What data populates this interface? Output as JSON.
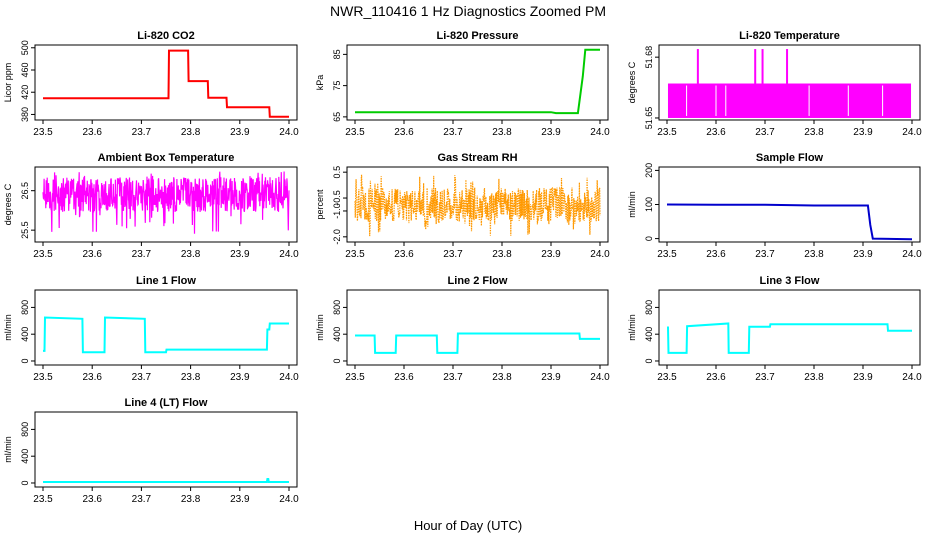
{
  "figure": {
    "title": "NWR_110416  1 Hz Diagnostics Zoomed PM",
    "xlabel": "Hour of Day (UTC)"
  },
  "chart_data": [
    {
      "type": "line",
      "title": "Li-820 CO2",
      "ylabel": "Licor ppm",
      "color": "#ff0000",
      "xlim": [
        23.5,
        24.0
      ],
      "ylim": [
        370,
        505
      ],
      "xticks": [
        23.5,
        23.6,
        23.7,
        23.8,
        23.9,
        24.0
      ],
      "xtick_labels": [
        "23.5",
        "23.6",
        "23.7",
        "23.8",
        "23.9",
        "24.0"
      ],
      "yticks": [
        380,
        420,
        460,
        500
      ],
      "ytick_labels": [
        "380",
        "420",
        "460",
        "500"
      ],
      "x": [
        23.5,
        23.755,
        23.756,
        23.795,
        23.796,
        23.835,
        23.836,
        23.873,
        23.874,
        23.935,
        23.936,
        23.96,
        23.961,
        24.0
      ],
      "y": [
        409,
        409,
        495,
        495,
        440,
        440,
        410,
        410,
        393,
        393,
        393,
        393,
        376,
        376
      ]
    },
    {
      "type": "line",
      "title": "Li-820 Pressure",
      "ylabel": "kPa",
      "color": "#00cc00",
      "xlim": [
        23.5,
        24.0
      ],
      "ylim": [
        64,
        88
      ],
      "xticks": [
        23.5,
        23.6,
        23.7,
        23.8,
        23.9,
        24.0
      ],
      "xtick_labels": [
        "23.5",
        "23.6",
        "23.7",
        "23.8",
        "23.9",
        "24.0"
      ],
      "yticks": [
        65,
        75,
        85
      ],
      "ytick_labels": [
        "65",
        "75",
        "85"
      ],
      "x": [
        23.5,
        23.9,
        23.91,
        23.955,
        23.965,
        23.97,
        24.0
      ],
      "y": [
        66.5,
        66.5,
        66.2,
        66.2,
        78,
        86.5,
        86.5
      ]
    },
    {
      "type": "line",
      "title": "Li-820 Temperature",
      "ylabel": "degrees C",
      "color": "#ff00ff",
      "xlim": [
        23.5,
        24.0
      ],
      "ylim": [
        51.649,
        51.686
      ],
      "xticks": [
        23.5,
        23.6,
        23.7,
        23.8,
        23.9,
        24.0
      ],
      "xtick_labels": [
        "23.5",
        "23.6",
        "23.7",
        "23.8",
        "23.9",
        "24.0"
      ],
      "yticks": [
        51.65,
        51.68
      ],
      "ytick_labels": [
        "51.65",
        "51.68"
      ],
      "band": [
        51.65,
        51.667
      ],
      "spikes_x": [
        23.563,
        23.68,
        23.695,
        23.745
      ],
      "spikes_top": 51.684
    },
    {
      "type": "line",
      "title": "Ambient Box Temperature",
      "ylabel": "degrees C",
      "color": "#ff00ff",
      "xlim": [
        23.5,
        24.0
      ],
      "ylim": [
        25.2,
        27.1
      ],
      "xticks": [
        23.5,
        23.6,
        23.7,
        23.8,
        23.9,
        24.0
      ],
      "xtick_labels": [
        "23.5",
        "23.6",
        "23.7",
        "23.8",
        "23.9",
        "24.0"
      ],
      "yticks": [
        25.5,
        26.5
      ],
      "ytick_labels": [
        "25.5",
        "26.5"
      ],
      "noise_mean": 26.4,
      "noise_range": [
        25.4,
        27.0
      ]
    },
    {
      "type": "line",
      "title": "Gas Stream RH",
      "ylabel": "percent",
      "color": "#ff9900",
      "xlim": [
        23.5,
        24.0
      ],
      "ylim": [
        -2.2,
        0.7
      ],
      "xticks": [
        23.5,
        23.6,
        23.7,
        23.8,
        23.9,
        24.0
      ],
      "xtick_labels": [
        "23.5",
        "23.6",
        "23.7",
        "23.8",
        "23.9",
        "24.0"
      ],
      "yticks": [
        -2.0,
        -1.0,
        -0.5,
        0.5
      ],
      "ytick_labels": [
        "-2.0",
        "-1.0",
        "-0.5",
        "0.5"
      ],
      "noise_mean": -0.75,
      "noise_range": [
        -2.0,
        0.4
      ]
    },
    {
      "type": "line",
      "title": "Sample Flow",
      "ylabel": "ml/min",
      "color": "#0000cc",
      "xlim": [
        23.5,
        24.0
      ],
      "ylim": [
        -10,
        210
      ],
      "xticks": [
        23.5,
        23.6,
        23.7,
        23.8,
        23.9,
        24.0
      ],
      "xtick_labels": [
        "23.5",
        "23.6",
        "23.7",
        "23.8",
        "23.9",
        "24.0"
      ],
      "yticks": [
        0,
        100,
        200
      ],
      "ytick_labels": [
        "0",
        "100",
        "200"
      ],
      "x": [
        23.5,
        23.6,
        23.7,
        23.8,
        23.91,
        23.915,
        23.92,
        24.0
      ],
      "y": [
        100,
        99,
        99,
        97,
        97,
        40,
        0,
        -2
      ]
    },
    {
      "type": "line",
      "title": "Line 1 Flow",
      "ylabel": "ml/min",
      "color": "#00ffff",
      "xlim": [
        23.5,
        24.0
      ],
      "ylim": [
        -60,
        1060
      ],
      "xticks": [
        23.5,
        23.6,
        23.7,
        23.8,
        23.9,
        24.0
      ],
      "xtick_labels": [
        "23.5",
        "23.6",
        "23.7",
        "23.8",
        "23.9",
        "24.0"
      ],
      "yticks": [
        0,
        400,
        800
      ],
      "ytick_labels": [
        "0",
        "400",
        "800"
      ],
      "x": [
        23.5,
        23.503,
        23.504,
        23.58,
        23.581,
        23.625,
        23.626,
        23.707,
        23.708,
        23.75,
        23.751,
        23.955,
        23.956,
        23.96,
        23.961,
        24.0
      ],
      "y": [
        150,
        150,
        650,
        630,
        130,
        130,
        650,
        630,
        130,
        130,
        170,
        170,
        470,
        470,
        560,
        560
      ]
    },
    {
      "type": "line",
      "title": "Line 2 Flow",
      "ylabel": "ml/min",
      "color": "#00ffff",
      "xlim": [
        23.5,
        24.0
      ],
      "ylim": [
        -60,
        1060
      ],
      "xticks": [
        23.5,
        23.6,
        23.7,
        23.8,
        23.9,
        24.0
      ],
      "xtick_labels": [
        "23.5",
        "23.6",
        "23.7",
        "23.8",
        "23.9",
        "24.0"
      ],
      "yticks": [
        0,
        400,
        800
      ],
      "ytick_labels": [
        "0",
        "400",
        "800"
      ],
      "x": [
        23.5,
        23.54,
        23.541,
        23.583,
        23.584,
        23.667,
        23.668,
        23.709,
        23.71,
        23.958,
        23.959,
        24.0
      ],
      "y": [
        380,
        380,
        120,
        120,
        380,
        380,
        120,
        120,
        410,
        410,
        330,
        330
      ]
    },
    {
      "type": "line",
      "title": "Line 3 Flow",
      "ylabel": "ml/min",
      "color": "#00ffff",
      "xlim": [
        23.5,
        24.0
      ],
      "ylim": [
        -60,
        1060
      ],
      "xticks": [
        23.5,
        23.6,
        23.7,
        23.8,
        23.9,
        24.0
      ],
      "xtick_labels": [
        "23.5",
        "23.6",
        "23.7",
        "23.8",
        "23.9",
        "24.0"
      ],
      "yticks": [
        0,
        400,
        800
      ],
      "ytick_labels": [
        "0",
        "400",
        "800"
      ],
      "x": [
        23.5,
        23.502,
        23.503,
        23.54,
        23.541,
        23.625,
        23.626,
        23.667,
        23.668,
        23.71,
        23.711,
        23.95,
        23.951,
        24.0
      ],
      "y": [
        500,
        500,
        120,
        120,
        520,
        560,
        120,
        120,
        510,
        510,
        550,
        550,
        450,
        450
      ]
    },
    {
      "type": "line",
      "title": "Line 4 (LT) Flow",
      "ylabel": "ml/min",
      "color": "#00ffff",
      "xlim": [
        23.5,
        24.0
      ],
      "ylim": [
        -60,
        1060
      ],
      "xticks": [
        23.5,
        23.6,
        23.7,
        23.8,
        23.9,
        24.0
      ],
      "xtick_labels": [
        "23.5",
        "23.6",
        "23.7",
        "23.8",
        "23.9",
        "24.0"
      ],
      "yticks": [
        0,
        400,
        800
      ],
      "ytick_labels": [
        "0",
        "400",
        "800"
      ],
      "x": [
        23.5,
        23.955,
        23.956,
        23.958,
        23.959,
        24.0
      ],
      "y": [
        15,
        15,
        60,
        60,
        15,
        15
      ]
    }
  ]
}
